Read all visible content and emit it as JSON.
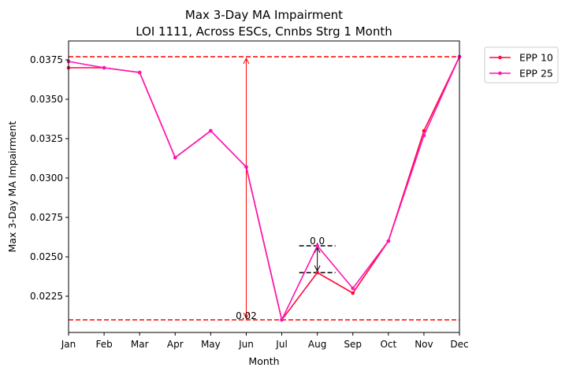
{
  "chart_data": {
    "type": "line",
    "title": "Max 3-Day MA Impairment",
    "subtitle": "LOI 1111, Across ESCs, Cnnbs Strg 1 Month",
    "xlabel": "Month",
    "ylabel": "Max 3-Day MA Impairment",
    "categories": [
      "Jan",
      "Feb",
      "Mar",
      "Apr",
      "May",
      "Jun",
      "Jul",
      "Aug",
      "Sep",
      "Oct",
      "Nov",
      "Dec"
    ],
    "ylim": [
      0.0202,
      0.0387
    ],
    "yticks": [
      0.0225,
      0.025,
      0.0275,
      0.03,
      0.0325,
      0.035,
      0.0375
    ],
    "ytick_labels": [
      "0.0225",
      "0.0250",
      "0.0275",
      "0.0300",
      "0.0325",
      "0.0350",
      "0.0375"
    ],
    "grid": false,
    "legend_position": "outside-top-right",
    "series": [
      {
        "name": "EPP 10",
        "color": "#ff0a3c",
        "values": [
          0.037,
          0.037,
          0.0367,
          0.0313,
          0.033,
          0.0307,
          0.021,
          0.024,
          0.0227,
          0.026,
          0.033,
          0.0377
        ]
      },
      {
        "name": "EPP 25",
        "color": "#ff14b4",
        "values": [
          0.0374,
          0.037,
          0.0367,
          0.0313,
          0.033,
          0.0307,
          0.021,
          0.0257,
          0.023,
          0.026,
          0.0327,
          0.0377
        ]
      }
    ],
    "annotations": {
      "global_range": {
        "color": "#ff0000",
        "upper": 0.0377,
        "lower": 0.021,
        "x_index": 5,
        "label": "0.02"
      },
      "local_range": {
        "color": "#000000",
        "upper": 0.0257,
        "lower": 0.024,
        "x_index": 7,
        "label": "0.0"
      }
    }
  }
}
